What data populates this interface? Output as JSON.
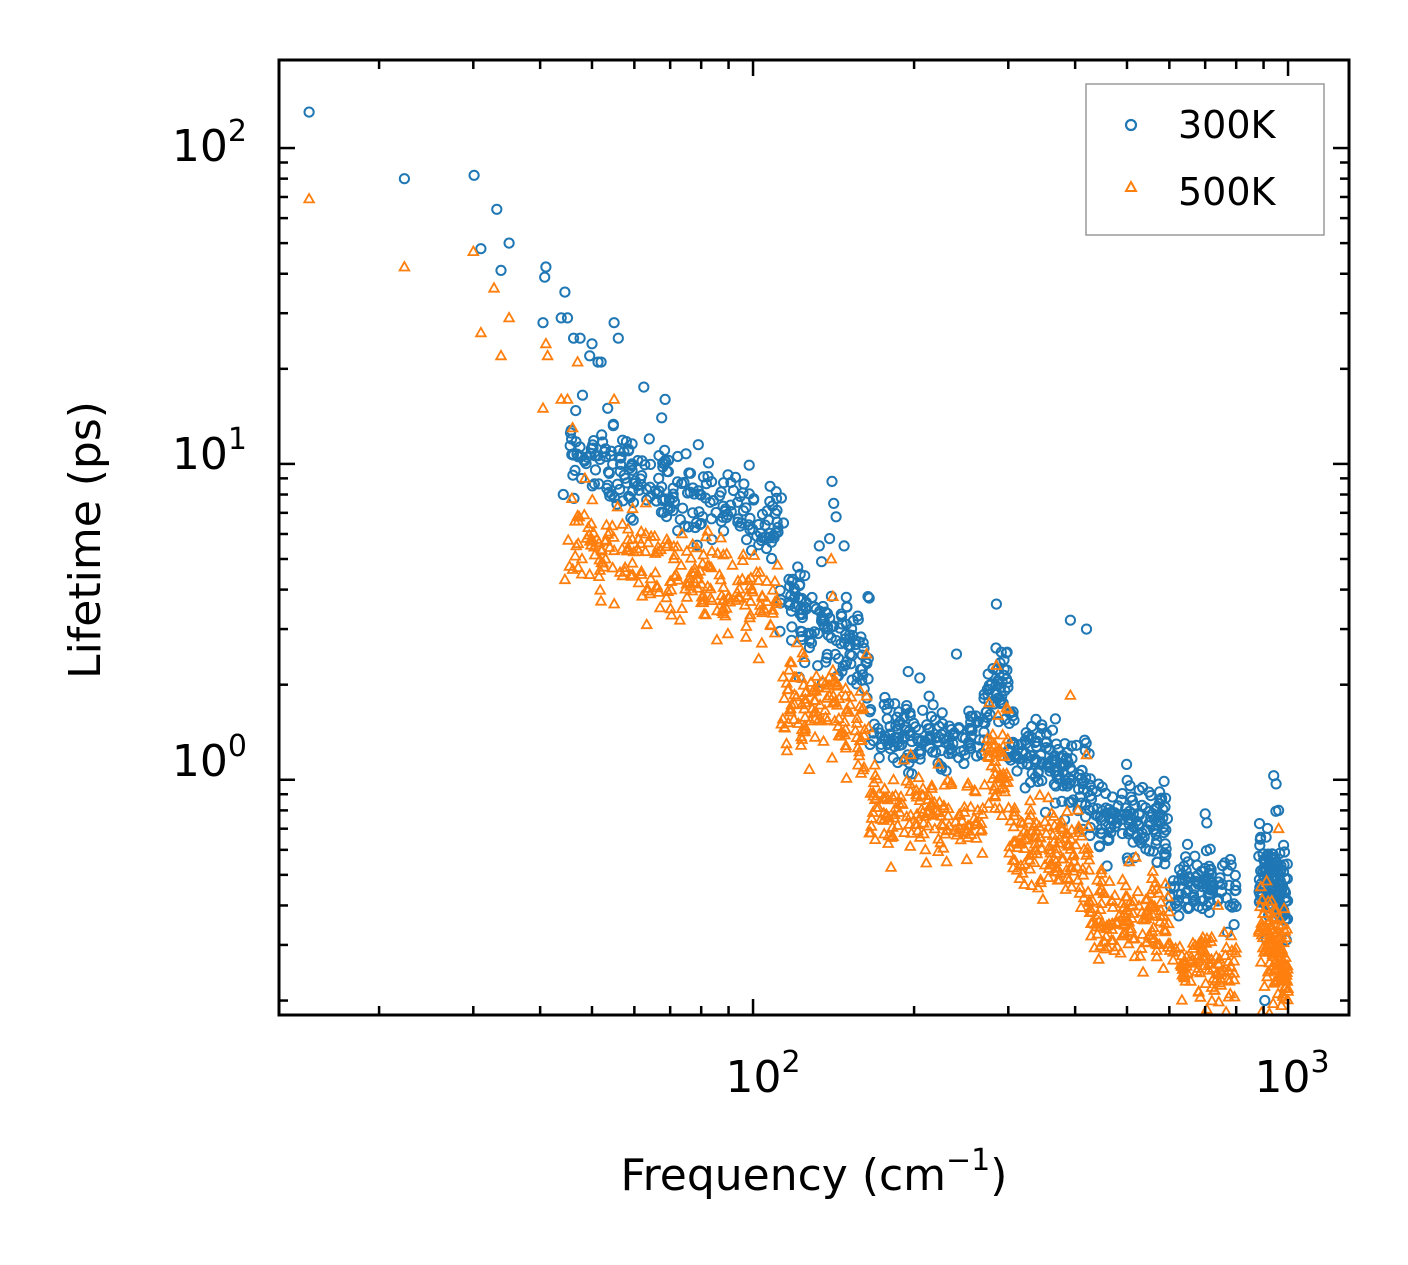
{
  "chart_data": {
    "type": "scatter",
    "xscale": "log",
    "yscale": "log",
    "xlim": [
      13,
      1300
    ],
    "ylim": [
      0.18,
      190
    ],
    "xlabel": "Frequency (cm",
    "xlabel_sup": "−1",
    "xlabel_end": ")",
    "ylabel": "Lifetime (ps)",
    "grid": false,
    "legend_position": "top-right",
    "x_ticks": [
      {
        "base": "10",
        "exp": "2",
        "value": 100
      },
      {
        "base": "10",
        "exp": "3",
        "value": 1000
      }
    ],
    "y_ticks": [
      {
        "base": "10",
        "exp": "0",
        "value": 1
      },
      {
        "base": "10",
        "exp": "1",
        "value": 10
      },
      {
        "base": "10",
        "exp": "2",
        "value": 100
      }
    ],
    "series": [
      {
        "name": "300K",
        "color": "#1f77b4",
        "marker": "circle",
        "points": [
          [
            14.8,
            130
          ],
          [
            22.3,
            80
          ],
          [
            30.1,
            82
          ],
          [
            31.0,
            48
          ],
          [
            33.2,
            64
          ],
          [
            33.8,
            41
          ],
          [
            35.0,
            50
          ],
          [
            40.5,
            28
          ],
          [
            40.8,
            39
          ],
          [
            41.0,
            42
          ],
          [
            43.8,
            29
          ],
          [
            44.2,
            8
          ],
          [
            44.5,
            35
          ],
          [
            45.0,
            29
          ],
          [
            46.2,
            25
          ],
          [
            47.5,
            25
          ],
          [
            48.0,
            16.5
          ],
          [
            49.5,
            22
          ],
          [
            50.0,
            24
          ],
          [
            51.3,
            21
          ],
          [
            52.0,
            21
          ],
          [
            53.5,
            15
          ],
          [
            55.0,
            28
          ],
          [
            56.0,
            25
          ],
          [
            58.5,
            11
          ],
          [
            62.5,
            17.5
          ],
          [
            64.0,
            12
          ],
          [
            67.5,
            14
          ],
          [
            68.5,
            16
          ],
          [
            79.0,
            11.5
          ],
          [
            113.0,
            7.8
          ],
          [
            114.0,
            6.5
          ],
          [
            133.0,
            5.5
          ],
          [
            139.0,
            5.8
          ],
          [
            140.5,
            8.8
          ],
          [
            141.5,
            7.5
          ],
          [
            143.0,
            6.8
          ],
          [
            148.0,
            5.5
          ],
          [
            164.0,
            3.8
          ],
          [
            195.0,
            2.2
          ],
          [
            205.0,
            2.1
          ],
          [
            225.0,
            1.1
          ],
          [
            240.0,
            2.5
          ],
          [
            285.0,
            3.6
          ],
          [
            392.0,
            3.2
          ],
          [
            420.0,
            3.0
          ],
          [
            650.0,
            0.55
          ],
          [
            700.0,
            0.78
          ],
          [
            705.0,
            0.73
          ],
          [
            940.0,
            1.03
          ],
          [
            950.0,
            0.97
          ],
          [
            905.0,
            0.2
          ],
          [
            960.0,
            0.8
          ]
        ],
        "segments": [
          {
            "x_start": 45,
            "x_end": 112,
            "y_start": 10.5,
            "y_end": 6.5,
            "spread": 0.38,
            "n": 230
          },
          {
            "x_start": 112,
            "x_end": 165,
            "y_start": 3.6,
            "y_end": 2.6,
            "spread": 0.42,
            "n": 130
          },
          {
            "x_start": 165,
            "x_end": 270,
            "y_start": 1.45,
            "y_end": 1.3,
            "spread": 0.3,
            "n": 150
          },
          {
            "x_start": 270,
            "x_end": 300,
            "y_start": 1.8,
            "y_end": 2.2,
            "spread": 0.35,
            "n": 50
          },
          {
            "x_start": 300,
            "x_end": 425,
            "y_start": 1.3,
            "y_end": 1.0,
            "spread": 0.35,
            "n": 140
          },
          {
            "x_start": 425,
            "x_end": 600,
            "y_start": 0.8,
            "y_end": 0.7,
            "spread": 0.35,
            "n": 140
          },
          {
            "x_start": 600,
            "x_end": 800,
            "y_start": 0.48,
            "y_end": 0.43,
            "spread": 0.3,
            "n": 100
          },
          {
            "x_start": 880,
            "x_end": 1000,
            "y_start": 0.55,
            "y_end": 0.42,
            "spread": 0.45,
            "n": 120
          }
        ]
      },
      {
        "name": "500K",
        "color": "#ff7f0e",
        "marker": "triangle",
        "points": [
          [
            14.8,
            69
          ],
          [
            22.3,
            42
          ],
          [
            30.0,
            47
          ],
          [
            31.0,
            26
          ],
          [
            32.8,
            36
          ],
          [
            33.8,
            22
          ],
          [
            35.0,
            29
          ],
          [
            40.5,
            15
          ],
          [
            41.0,
            24
          ],
          [
            41.3,
            22
          ],
          [
            43.8,
            16
          ],
          [
            44.5,
            4.3
          ],
          [
            45.0,
            16
          ],
          [
            46.0,
            13
          ],
          [
            47.0,
            21
          ],
          [
            48.5,
            9
          ],
          [
            55.0,
            16
          ],
          [
            63.0,
            6
          ],
          [
            67.0,
            3.5
          ],
          [
            73.0,
            3.2
          ],
          [
            113.0,
            1.5
          ],
          [
            115.5,
            1.3
          ],
          [
            140.0,
            5
          ],
          [
            141.0,
            3.8
          ],
          [
            163.0,
            2.5
          ],
          [
            183.0,
            1.0
          ],
          [
            197.0,
            1.2
          ],
          [
            210.0,
            0.6
          ],
          [
            230.0,
            0.55
          ],
          [
            285.0,
            2.3
          ],
          [
            392.0,
            1.85
          ],
          [
            420.0,
            1.2
          ],
          [
            470.0,
            0.35
          ],
          [
            505.0,
            0.55
          ],
          [
            680.0,
            0.3
          ],
          [
            720.0,
            0.22
          ],
          [
            740.0,
            0.4
          ],
          [
            780.0,
            0.21
          ],
          [
            905.0,
            0.17
          ],
          [
            960.0,
            0.7
          ]
        ],
        "segments": [
          {
            "x_start": 45,
            "x_end": 112,
            "y_start": 5.8,
            "y_end": 3.6,
            "spread": 0.38,
            "n": 230
          },
          {
            "x_start": 112,
            "x_end": 165,
            "y_start": 1.9,
            "y_end": 1.5,
            "spread": 0.42,
            "n": 130
          },
          {
            "x_start": 165,
            "x_end": 270,
            "y_start": 0.8,
            "y_end": 0.75,
            "spread": 0.33,
            "n": 150
          },
          {
            "x_start": 270,
            "x_end": 300,
            "y_start": 1.0,
            "y_end": 1.2,
            "spread": 0.45,
            "n": 50
          },
          {
            "x_start": 300,
            "x_end": 425,
            "y_start": 0.65,
            "y_end": 0.55,
            "spread": 0.4,
            "n": 140
          },
          {
            "x_start": 425,
            "x_end": 600,
            "y_start": 0.38,
            "y_end": 0.35,
            "spread": 0.4,
            "n": 140
          },
          {
            "x_start": 600,
            "x_end": 800,
            "y_start": 0.27,
            "y_end": 0.25,
            "spread": 0.3,
            "n": 100
          },
          {
            "x_start": 880,
            "x_end": 1000,
            "y_start": 0.32,
            "y_end": 0.26,
            "spread": 0.45,
            "n": 120
          }
        ]
      }
    ]
  }
}
